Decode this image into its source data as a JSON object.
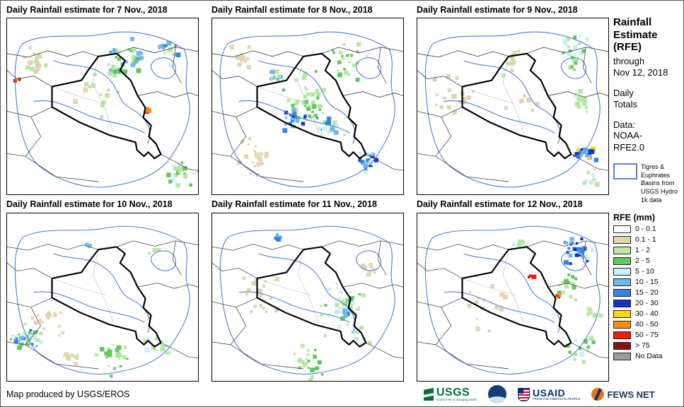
{
  "panels": [
    {
      "title": "Daily Rainfall estimate for 7 Nov., 2018"
    },
    {
      "title": "Daily Rainfall estimate for 8 Nov., 2018"
    },
    {
      "title": "Daily Rainfall estimate for 9 Nov., 2018"
    },
    {
      "title": "Daily Rainfall estimate for 10 Nov., 2018"
    },
    {
      "title": "Daily Rainfall estimate for 11 Nov., 2018"
    },
    {
      "title": "Daily Rainfall estimate for 12 Nov., 2018"
    }
  ],
  "sidebar": {
    "title": "Rainfall Estimate (RFE)",
    "through": "through",
    "through_date": "Nov 12, 2018",
    "period": "Daily Totals",
    "data_label": "Data:",
    "data_source": "NOAA-RFE2.0",
    "basin_label": "Tigres & Euphrates Basins from USGS Hydro 1k data",
    "legend_title": "RFE (mm)",
    "legend": [
      {
        "label": "0 - 0.1",
        "color": "#FFFFFF"
      },
      {
        "label": "0.1 - 1",
        "color": "#E3D3AE"
      },
      {
        "label": "1 - 2",
        "color": "#B5E8A3"
      },
      {
        "label": "2 - 5",
        "color": "#5DC85D"
      },
      {
        "label": "5 - 10",
        "color": "#C9F0F2"
      },
      {
        "label": "10 - 15",
        "color": "#6FB6F2"
      },
      {
        "label": "15 - 20",
        "color": "#2E86E8"
      },
      {
        "label": "20 - 30",
        "color": "#1133CC"
      },
      {
        "label": "30 - 40",
        "color": "#FFD800"
      },
      {
        "label": "40 - 50",
        "color": "#FF9000"
      },
      {
        "label": "50 - 75",
        "color": "#F22000"
      },
      {
        "label": "> 75",
        "color": "#8C1010"
      },
      {
        "label": "No Data",
        "color": "#9C9C9C"
      }
    ]
  },
  "footer": {
    "credit": "Map produced by USGS/EROS",
    "logos": [
      {
        "name": "USGS",
        "tagline": "science for a changing world"
      },
      {
        "name": "NOAA",
        "tagline": ""
      },
      {
        "name": "USAID",
        "tagline": "FROM THE AMERICAN PEOPLE"
      },
      {
        "name": "FEWS NET",
        "tagline": ""
      }
    ]
  },
  "map_colors": {
    "basin_outline": "#4A7BD4",
    "country_outline": "#000000",
    "neighbor_outline": "#444444"
  }
}
